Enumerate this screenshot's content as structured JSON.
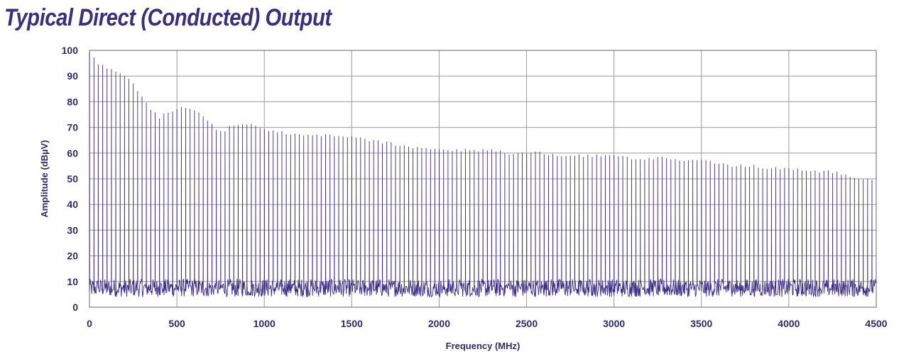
{
  "chart_data": {
    "type": "line",
    "title": "Typical Direct (Conducted) Output",
    "xlabel": "Frequency (MHz)",
    "ylabel": "Amplitude (dBµV)",
    "xlim": [
      0,
      4500
    ],
    "ylim": [
      0,
      100
    ],
    "x_ticks": [
      "0",
      "500",
      "1000",
      "1500",
      "2000",
      "2500",
      "3000",
      "3500",
      "4000",
      "4500"
    ],
    "y_ticks": [
      "0",
      "10",
      "20",
      "30",
      "40",
      "50",
      "60",
      "70",
      "80",
      "90",
      "100"
    ],
    "grid": true,
    "harmonic_spacing_mhz": 25,
    "noise_floor_range": [
      4,
      11
    ],
    "series": [
      {
        "color": "#3b2d8a",
        "envelope_points": [
          [
            0,
            99
          ],
          [
            50,
            95
          ],
          [
            100,
            93
          ],
          [
            150,
            92
          ],
          [
            200,
            90
          ],
          [
            250,
            87
          ],
          [
            300,
            82
          ],
          [
            350,
            77
          ],
          [
            400,
            74
          ],
          [
            450,
            76
          ],
          [
            500,
            77
          ],
          [
            550,
            78
          ],
          [
            600,
            77
          ],
          [
            650,
            74
          ],
          [
            700,
            71
          ],
          [
            750,
            68
          ],
          [
            800,
            70
          ],
          [
            850,
            71
          ],
          [
            900,
            71
          ],
          [
            950,
            71
          ],
          [
            1000,
            69
          ],
          [
            1100,
            68
          ],
          [
            1200,
            67
          ],
          [
            1300,
            67
          ],
          [
            1400,
            67
          ],
          [
            1500,
            66
          ],
          [
            1600,
            65
          ],
          [
            1700,
            64
          ],
          [
            1800,
            63
          ],
          [
            1900,
            62
          ],
          [
            2000,
            61
          ],
          [
            2100,
            61
          ],
          [
            2200,
            61
          ],
          [
            2300,
            61
          ],
          [
            2400,
            60
          ],
          [
            2500,
            60
          ],
          [
            2600,
            60
          ],
          [
            2700,
            59
          ],
          [
            2800,
            59
          ],
          [
            2900,
            59
          ],
          [
            3000,
            59
          ],
          [
            3100,
            58
          ],
          [
            3200,
            58
          ],
          [
            3300,
            58
          ],
          [
            3400,
            57
          ],
          [
            3500,
            57
          ],
          [
            3600,
            56
          ],
          [
            3700,
            55
          ],
          [
            3800,
            55
          ],
          [
            3900,
            54
          ],
          [
            4000,
            54
          ],
          [
            4100,
            53
          ],
          [
            4200,
            53
          ],
          [
            4300,
            52
          ],
          [
            4400,
            50
          ],
          [
            4480,
            50
          ]
        ]
      }
    ]
  }
}
